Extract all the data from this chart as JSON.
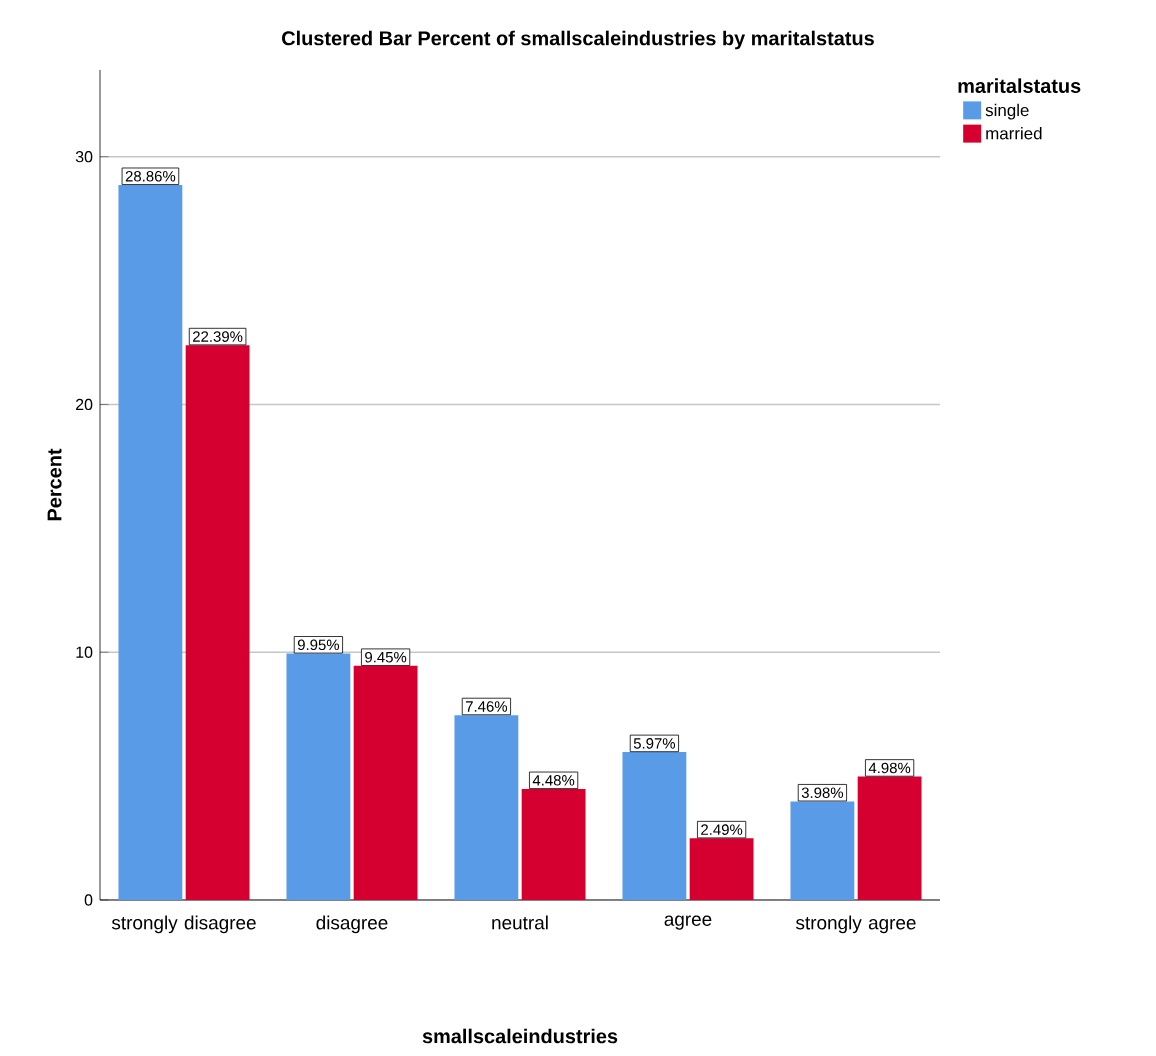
{
  "chart_data": {
    "type": "bar",
    "title": "Clustered Bar Percent of smallscaleindustries by maritalstatus",
    "xlabel": "smallscaleindustries",
    "ylabel": "Percent",
    "legend_title": "maritalstatus",
    "categories": [
      "strongly disagree",
      "disagree",
      "neutral",
      "agree",
      "strongly agree"
    ],
    "series": [
      {
        "name": "single",
        "color": "#5a9be8",
        "values": [
          28.86,
          9.95,
          7.46,
          5.97,
          3.98
        ],
        "value_labels": [
          "28.86%",
          "9.95%",
          "7.46%",
          "5.97%",
          "3.98%"
        ]
      },
      {
        "name": "married",
        "color": "#d5002f",
        "values": [
          22.39,
          9.45,
          4.48,
          2.49,
          4.98
        ],
        "value_labels": [
          "22.39%",
          "9.45%",
          "4.48%",
          "2.49%",
          "4.98%"
        ]
      }
    ],
    "ylim": [
      0,
      33.5
    ],
    "yticks": [
      0,
      10,
      20,
      30
    ],
    "grid": "y",
    "legend": "top right"
  }
}
